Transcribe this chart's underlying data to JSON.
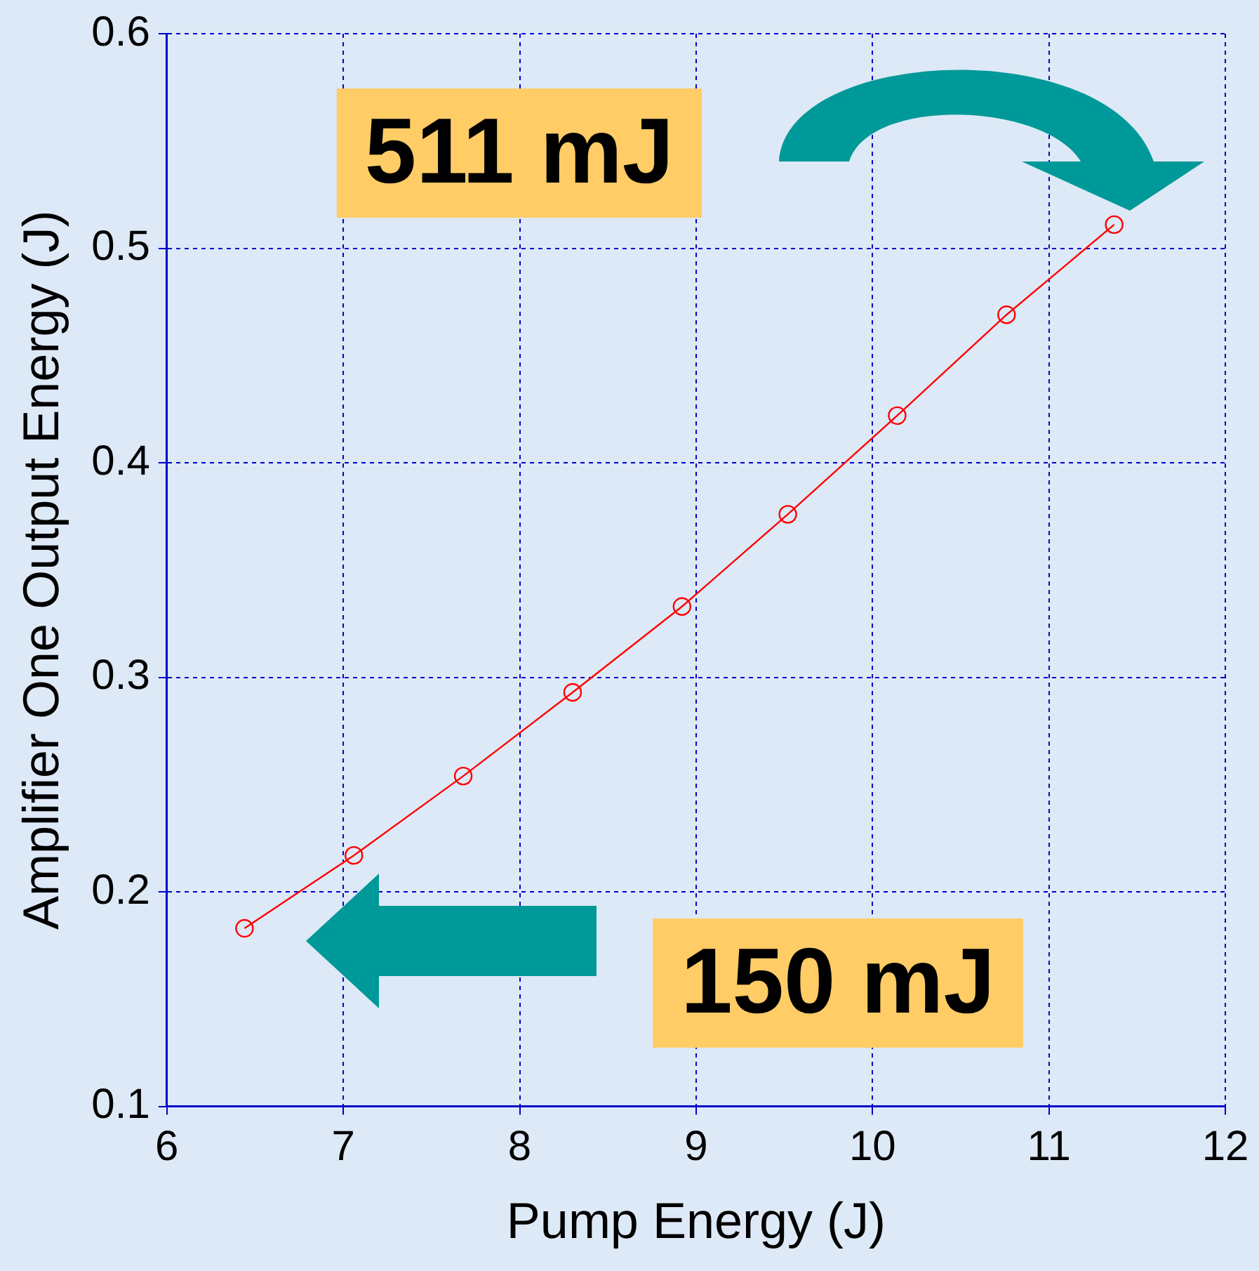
{
  "chart_data": {
    "type": "line",
    "xlabel": "Pump Energy (J)",
    "ylabel": "Amplifier One Output Energy (J)",
    "x": [
      6.44,
      7.06,
      7.68,
      8.3,
      8.92,
      9.52,
      10.14,
      10.76,
      11.37
    ],
    "series": [
      {
        "color": "#ff0000",
        "values": [
          0.183,
          0.217,
          0.254,
          0.293,
          0.333,
          0.376,
          0.422,
          0.469,
          0.511
        ]
      }
    ],
    "xlim": [
      6,
      12
    ],
    "xticks": [
      6,
      7,
      8,
      9,
      10,
      11,
      12
    ],
    "ylim": [
      0.1,
      0.6
    ],
    "yticks": [
      0.1,
      0.2,
      0.3,
      0.4,
      0.5,
      0.6
    ],
    "grid": true,
    "marker": "circle",
    "line_style": "solid",
    "legend": false,
    "annotations": [
      "511 mJ",
      "150 mJ"
    ]
  }
}
